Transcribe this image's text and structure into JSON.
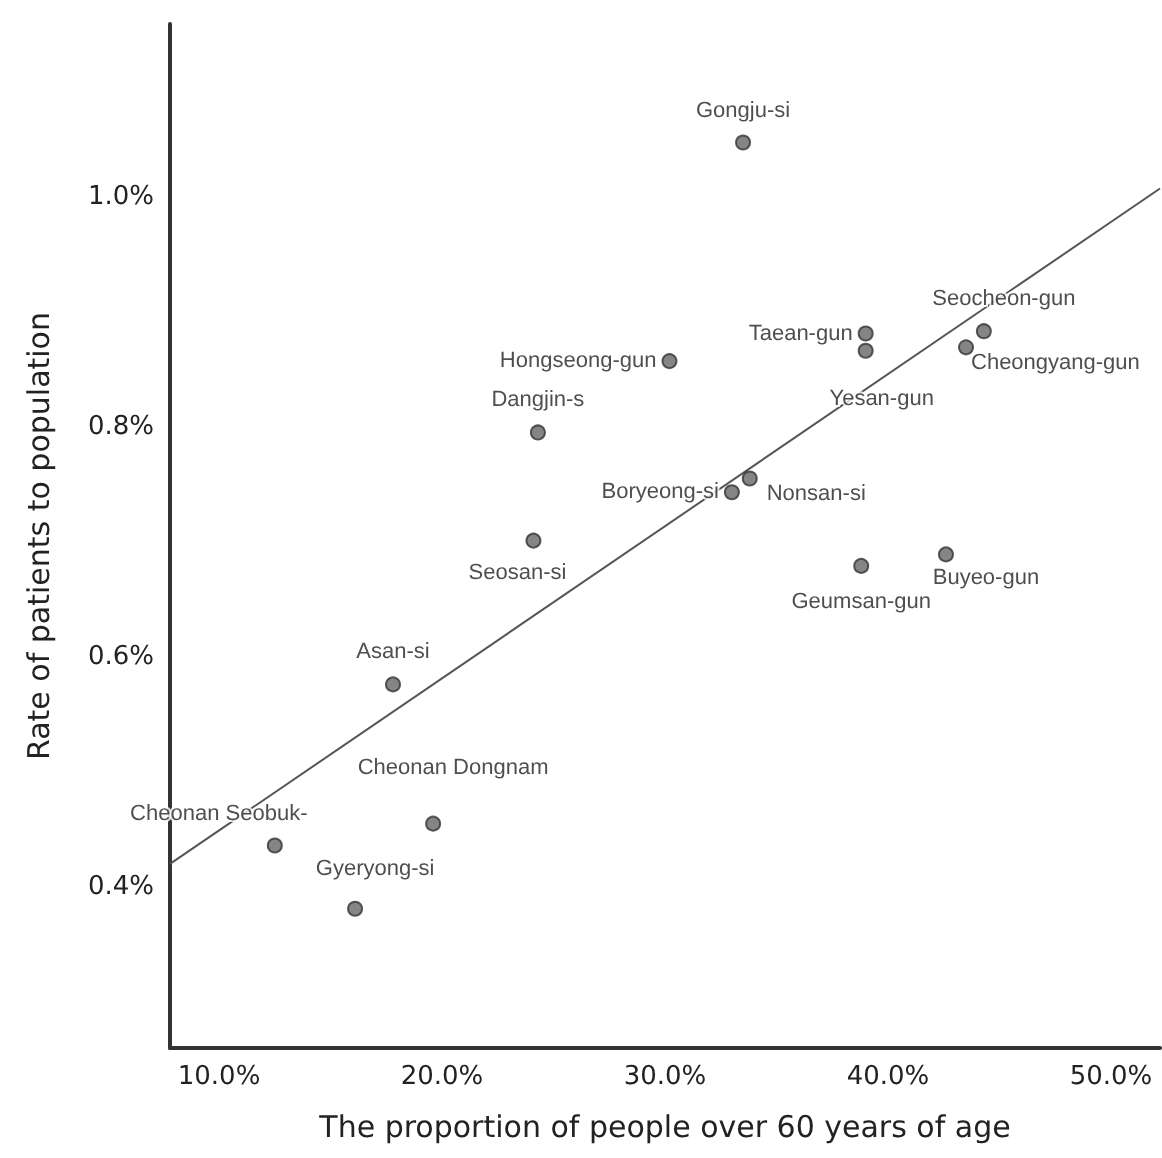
{
  "chart_data": {
    "type": "scatter",
    "xlabel": "The proportion of people over 60 years of age",
    "ylabel": "Rate of patients to population",
    "xlim": [
      7.8,
      52.2
    ],
    "xticks": [
      {
        "value": 10,
        "label": "10.0%"
      },
      {
        "value": 20,
        "label": "20.0%"
      },
      {
        "value": 30,
        "label": "30.0%"
      },
      {
        "value": 40,
        "label": "40.0%"
      },
      {
        "value": 50,
        "label": "50.0%"
      }
    ],
    "ylim": [
      0.26,
      1.15
    ],
    "yticks": [
      {
        "value": 0.4,
        "label": "0.4%"
      },
      {
        "value": 0.6,
        "label": "0.6%"
      },
      {
        "value": 0.8,
        "label": "0.8%"
      },
      {
        "value": 1.0,
        "label": "1.0%"
      }
    ],
    "grid": false,
    "marker": "circle",
    "series": [
      {
        "color": "#666666",
        "x": [
          33.5,
          39.0,
          39.0,
          44.3,
          43.5,
          30.2,
          24.3,
          33.8,
          33.0,
          24.1,
          38.8,
          42.6,
          17.8,
          19.6,
          12.5,
          16.1
        ],
        "values": [
          1.047,
          0.881,
          0.866,
          0.883,
          0.869,
          0.857,
          0.795,
          0.755,
          0.743,
          0.701,
          0.679,
          0.689,
          0.576,
          0.455,
          0.436,
          0.381
        ]
      },
      {
        "type": "line",
        "color": "#555555",
        "marker": "none",
        "x": [
          7.8,
          52.2
        ],
        "values": [
          0.42,
          1.007
        ]
      }
    ],
    "annotations": [
      {
        "text": "Gongju-si",
        "x": 33.5,
        "y": 1.047
      },
      {
        "text": "Taean-gun",
        "x": 39.0,
        "y": 0.881
      },
      {
        "text": "Yesan-gun",
        "x": 39.0,
        "y": 0.866
      },
      {
        "text": "Seocheon-gun",
        "x": 44.3,
        "y": 0.883
      },
      {
        "text": "Cheongyang-gun",
        "x": 43.5,
        "y": 0.869
      },
      {
        "text": "Hongseong-gun",
        "x": 30.2,
        "y": 0.857
      },
      {
        "text": "Dangjin-s",
        "x": 24.3,
        "y": 0.795
      },
      {
        "text": "Nonsan-si",
        "x": 33.8,
        "y": 0.755
      },
      {
        "text": "Boryeong-si",
        "x": 33.0,
        "y": 0.743
      },
      {
        "text": "Seosan-si",
        "x": 24.1,
        "y": 0.701
      },
      {
        "text": "Geumsan-gun",
        "x": 38.8,
        "y": 0.679
      },
      {
        "text": "Buyeo-gun",
        "x": 42.6,
        "y": 0.689
      },
      {
        "text": "Asan-si",
        "x": 17.8,
        "y": 0.576
      },
      {
        "text": "Cheonan Dongnam",
        "x": 19.6,
        "y": 0.455
      },
      {
        "text": "Cheonan Seobuk-",
        "x": 12.5,
        "y": 0.436
      },
      {
        "text": "Gyeryong-si",
        "x": 16.1,
        "y": 0.381
      }
    ]
  }
}
